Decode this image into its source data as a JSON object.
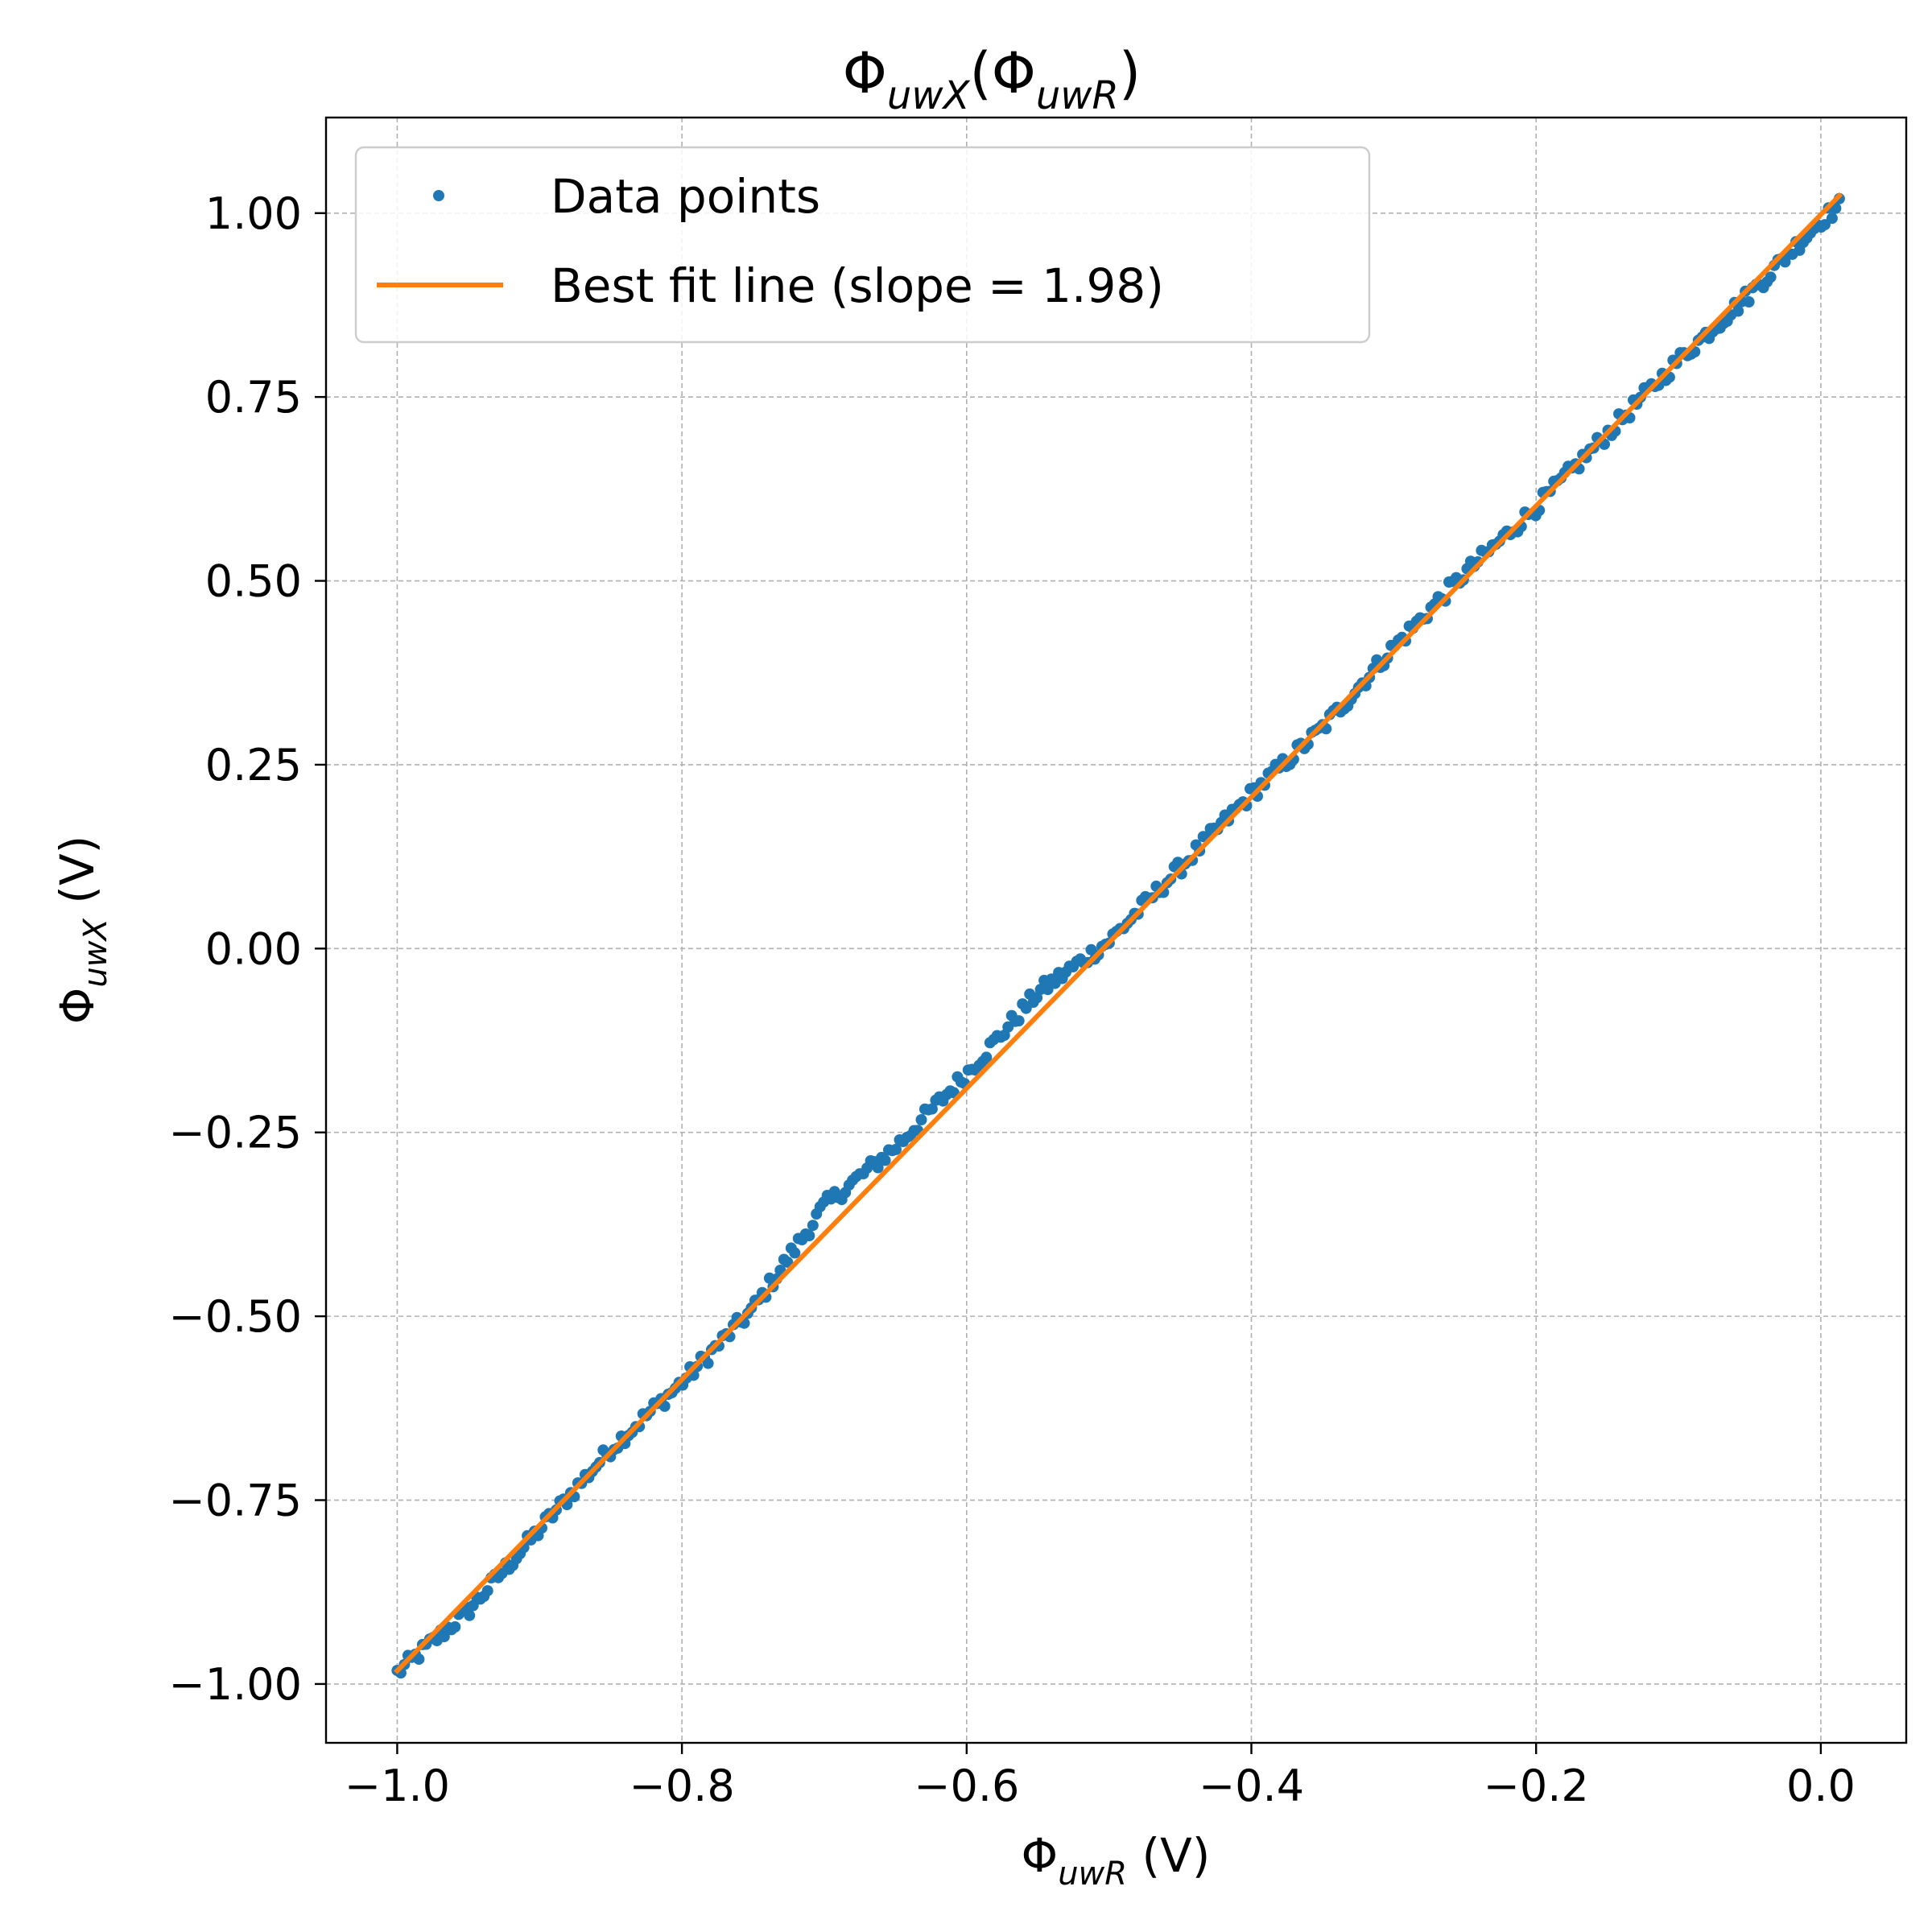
{
  "chart_data": {
    "type": "scatter",
    "title": {
      "base": "Φ",
      "sub": "uwX",
      "open": "(Φ",
      "sub2": "uwR",
      "close": ")"
    },
    "xlabel": {
      "base": "Φ",
      "sub": "uwR",
      "unit": " (V)"
    },
    "ylabel": {
      "base": "Φ",
      "sub": "uwX",
      "unit": " (V)"
    },
    "xlim": [
      -1.05,
      0.06
    ],
    "ylim": [
      -1.08,
      1.13
    ],
    "xticks": [
      -1.0,
      -0.8,
      -0.6,
      -0.4,
      -0.2,
      0.0
    ],
    "xtick_labels": [
      "−1.0",
      "−0.8",
      "−0.6",
      "−0.4",
      "−0.2",
      "0.0"
    ],
    "yticks": [
      -1.0,
      -0.75,
      -0.5,
      -0.25,
      0.0,
      0.25,
      0.5,
      0.75,
      1.0
    ],
    "ytick_labels": [
      "−1.00",
      "−0.75",
      "−0.50",
      "−0.25",
      "0.00",
      "0.25",
      "0.50",
      "0.75",
      "1.00"
    ],
    "grid": true,
    "legend_position": "upper-left",
    "series": [
      {
        "name": "Data points",
        "kind": "points",
        "color": "#1f77b4",
        "x_range": [
          -1.0,
          0.013
        ],
        "count": 400,
        "points": [
          [
            -1.0,
            -0.985
          ],
          [
            -0.95,
            -0.9
          ],
          [
            -0.9,
            -0.79
          ],
          [
            -0.85,
            -0.68
          ],
          [
            -0.8,
            -0.59
          ],
          [
            -0.75,
            -0.49
          ],
          [
            -0.7,
            -0.35
          ],
          [
            -0.65,
            -0.27
          ],
          [
            -0.6,
            -0.17
          ],
          [
            -0.55,
            -0.06
          ],
          [
            -0.5,
            0.01
          ],
          [
            -0.45,
            0.11
          ],
          [
            -0.4,
            0.21
          ],
          [
            -0.35,
            0.3
          ],
          [
            -0.3,
            0.41
          ],
          [
            -0.25,
            0.51
          ],
          [
            -0.2,
            0.6
          ],
          [
            -0.15,
            0.7
          ],
          [
            -0.1,
            0.8
          ],
          [
            -0.05,
            0.89
          ],
          [
            0.0,
            0.99
          ],
          [
            0.013,
            1.01
          ]
        ]
      },
      {
        "name": "Best fit line (slope = 1.98)",
        "kind": "line",
        "color": "#ff7f0e",
        "slope": 1.98,
        "intercept": 0.998,
        "x_range": [
          -1.0,
          0.013
        ]
      }
    ]
  }
}
